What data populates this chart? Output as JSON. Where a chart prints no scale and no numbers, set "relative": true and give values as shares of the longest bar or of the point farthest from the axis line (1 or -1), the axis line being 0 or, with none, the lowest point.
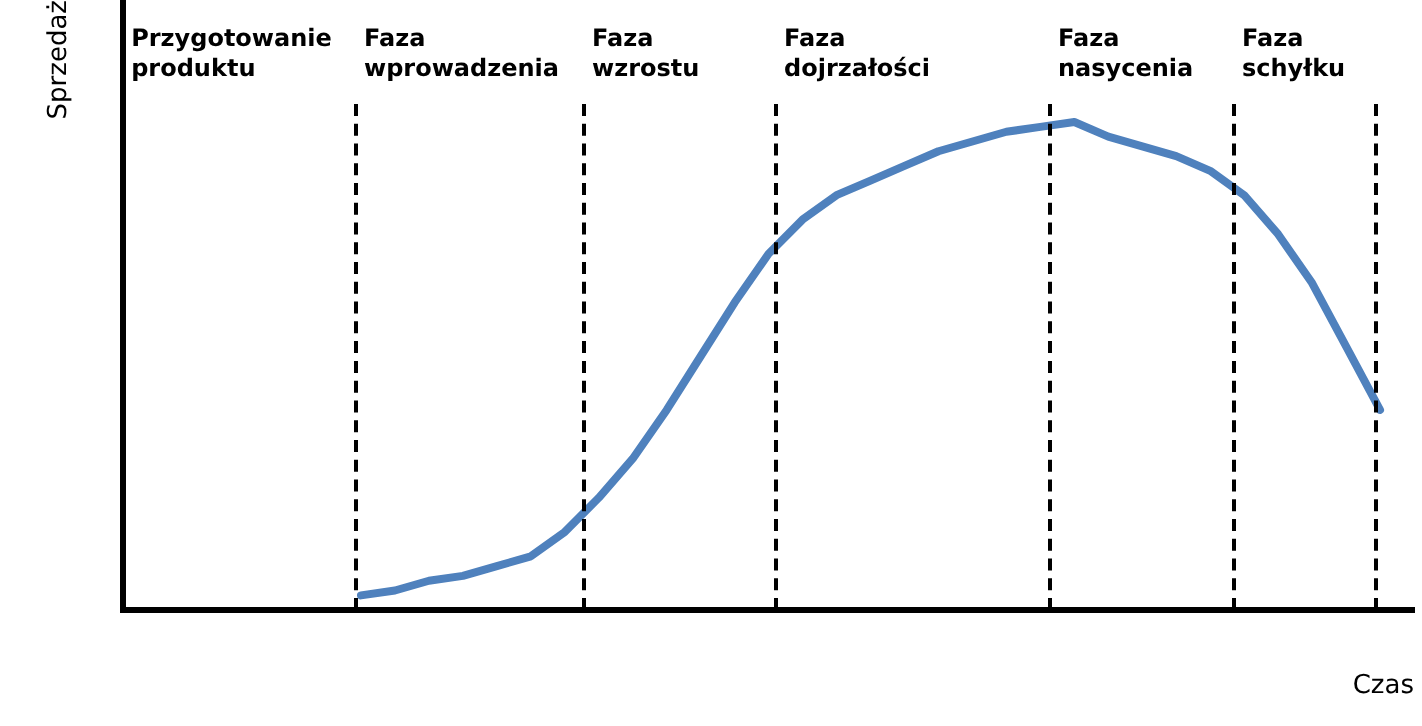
{
  "chart_data": {
    "type": "line",
    "relative": true,
    "xlabel": "Czas",
    "ylabel": "Sprzedaż",
    "line_style": "solid",
    "categories": [
      null,
      null,
      null,
      null,
      null,
      null,
      null,
      null,
      null,
      null,
      null,
      null,
      null,
      null,
      null,
      null,
      null,
      null,
      null,
      null,
      null,
      null,
      null,
      null,
      null,
      null,
      null,
      null,
      null,
      null,
      null,
      null,
      null,
      null,
      null,
      null,
      null,
      null,
      null
    ],
    "series": [
      {
        "color": "#4f81bd",
        "values": [
          null,
          null,
          null,
          null,
          null,
          null,
          null,
          0.03,
          0.04,
          0.06,
          0.07,
          0.09,
          0.11,
          0.16,
          0.23,
          0.31,
          0.41,
          0.52,
          0.63,
          0.73,
          0.8,
          0.85,
          0.88,
          0.91,
          0.94,
          0.96,
          0.98,
          0.99,
          1,
          0.97,
          0.95,
          0.93,
          0.9,
          0.85,
          0.77,
          0.67,
          0.54,
          0.41,
          null
        ]
      }
    ],
    "annotations": [
      "Przygotowanie\nproduktu",
      "Faza\nwprowadzenia",
      "Faza\nwzrostu",
      "Faza\ndojrzałości",
      "Faza\nnasycenia",
      "Faza\nschyłku"
    ]
  }
}
